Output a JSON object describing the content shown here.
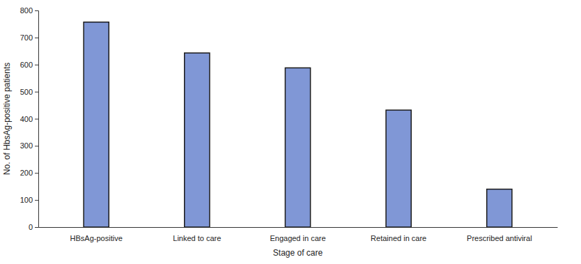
{
  "chart_data": {
    "type": "bar",
    "x_label": "Stage of care",
    "y_label": "No. of HbsAg-positive patients",
    "categories": [
      "HBsAg-positive",
      "Linked to care",
      "Engaged in care",
      "Retained in care",
      "Prescribed antiviral"
    ],
    "values": [
      757,
      643,
      588,
      432,
      140
    ],
    "color": "#8097d6",
    "ylim": [
      0,
      800
    ],
    "yticks": [
      0,
      100,
      200,
      300,
      400,
      500,
      600,
      700,
      800
    ],
    "grid": false
  }
}
